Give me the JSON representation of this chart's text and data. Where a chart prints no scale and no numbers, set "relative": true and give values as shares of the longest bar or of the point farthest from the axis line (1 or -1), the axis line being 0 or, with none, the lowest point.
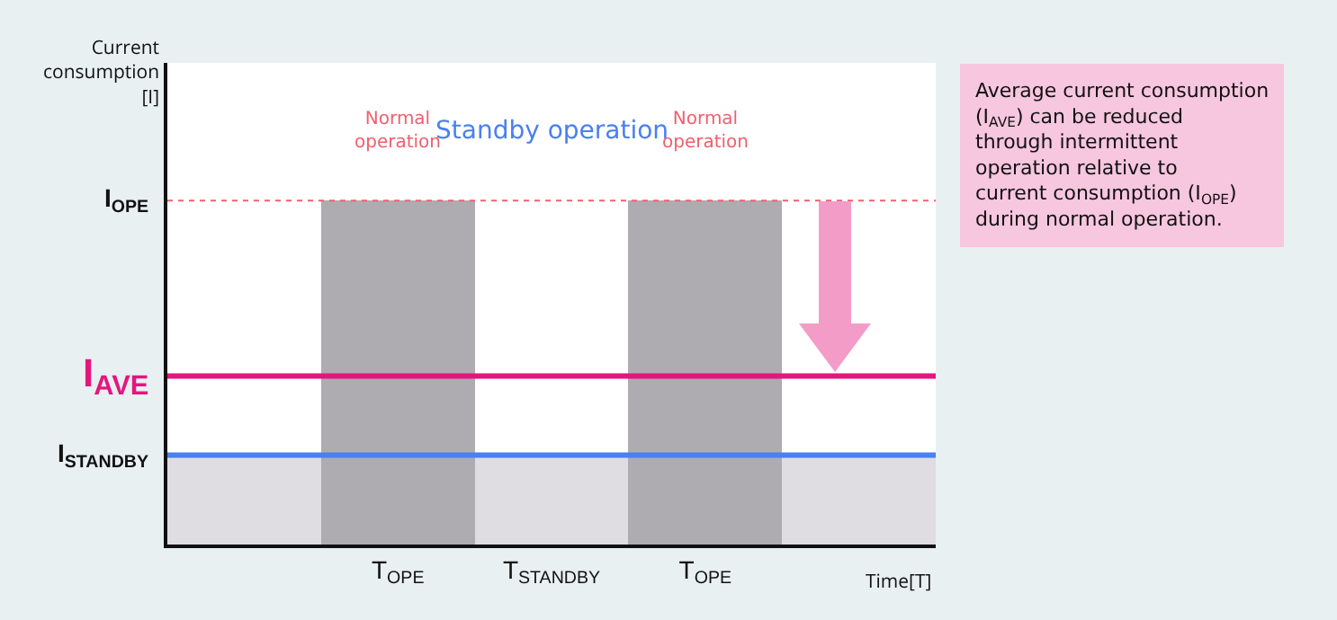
{
  "chart_data": {
    "type": "bar",
    "relative": true,
    "xlabel": "Time[T]",
    "ylabel": "Current consumption [I]",
    "categories": [
      null,
      "T$_{OPE}$",
      "T$_{STANDBY}$",
      "T$_{OPE}$",
      null
    ],
    "values": [
      0.26,
      1,
      0.26,
      1,
      0.26
    ],
    "colors": [
      "#dfdde2",
      "#aeacb1",
      "#dfdde2",
      "#aeacb1",
      "#dfdde2"
    ],
    "ref_lines": [
      {
        "axis": "y",
        "value": 1,
        "label": "I$_{OPE}$",
        "color": "#f0606e",
        "line_style": "dotted"
      },
      {
        "axis": "y",
        "value": 0.49,
        "label": "I$_{AVE}$",
        "color": "#e3177d",
        "line_style": "solid"
      },
      {
        "axis": "y",
        "value": 0.26,
        "label": "I$_{STANDBY}$",
        "color": "#4a80f0",
        "line_style": "solid"
      }
    ],
    "annotations": [
      "Normal operation",
      "Standby operation",
      "Normal operation",
      "Average current consumption (I$_{AVE}$) can be reduced through intermittent operation relative to current consumption (I$_{OPE}$) during normal operation."
    ],
    "grid": false
  }
}
